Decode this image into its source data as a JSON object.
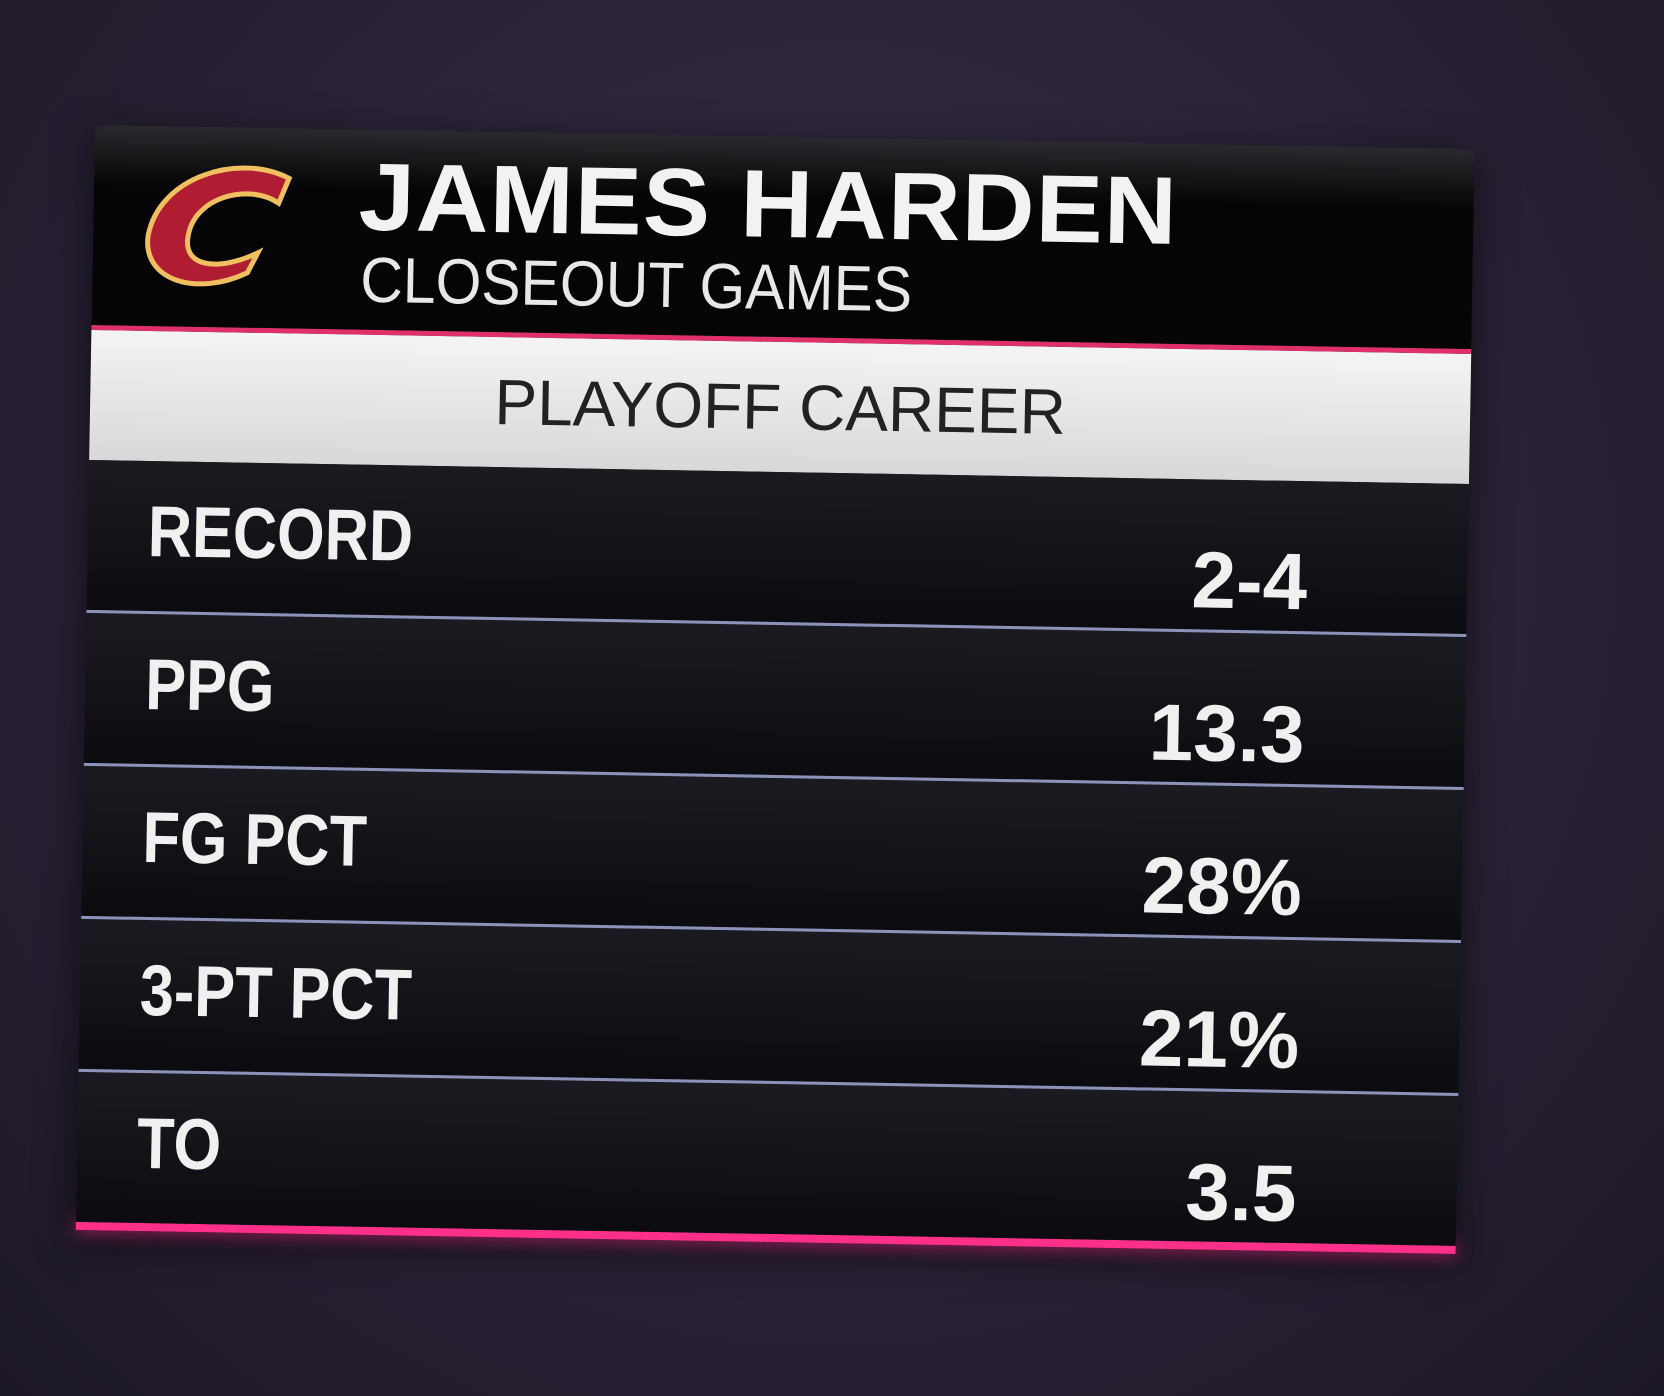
{
  "header": {
    "title": "JAMES HARDEN",
    "subtitle": "CLOSEOUT GAMES"
  },
  "section": "PLAYOFF CAREER",
  "table": {
    "rows": [
      [
        "RECORD",
        "2-4"
      ],
      [
        "PPG",
        "13.3"
      ],
      [
        "FG PCT",
        "28%"
      ],
      [
        "3-PT PCT",
        "21%"
      ],
      [
        "TO",
        "3.5"
      ]
    ]
  }
}
